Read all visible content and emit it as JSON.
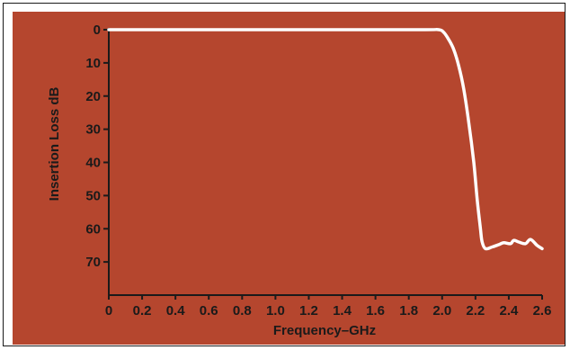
{
  "colors": {
    "frame": "#1a1a1a",
    "panel": "#b5462e",
    "axis": "#1a1a1a",
    "curve": "#ffffff"
  },
  "chart_data": {
    "type": "line",
    "title": "",
    "xlabel": "Frequency–GHz",
    "ylabel": "Insertion Loss dB",
    "xlim": [
      0,
      2.6
    ],
    "ylim": [
      0,
      80
    ],
    "y_inverted": true,
    "grid": false,
    "x_ticks": [
      0,
      0.2,
      0.4,
      0.6,
      0.8,
      1.0,
      1.2,
      1.4,
      1.6,
      1.8,
      2.0,
      2.2,
      2.4,
      2.6
    ],
    "x_tick_labels": [
      "0",
      "0.2",
      "0.4",
      "0.6",
      "0.8",
      "1.0",
      "1.2",
      "1.4",
      "1.6",
      "1.8",
      "2.0",
      "2.2",
      "2.4",
      "2.6"
    ],
    "y_ticks": [
      0,
      10,
      20,
      30,
      40,
      50,
      60,
      70
    ],
    "y_tick_labels": [
      "0",
      "10",
      "20",
      "30",
      "40",
      "50",
      "60",
      "70"
    ],
    "series": [
      {
        "x": [
          0,
          0.5,
          1.0,
          1.5,
          1.9,
          1.98,
          2.01,
          2.04,
          2.07,
          2.1,
          2.13,
          2.16,
          2.19,
          2.21,
          2.23,
          2.24,
          2.26,
          2.3,
          2.34,
          2.37,
          2.41,
          2.43,
          2.46,
          2.5,
          2.53,
          2.57,
          2.6
        ],
        "y": [
          0,
          0,
          0,
          0,
          0,
          0,
          0.8,
          3,
          6,
          11,
          18,
          28,
          40,
          51,
          60,
          64,
          66,
          65.5,
          64.8,
          64.2,
          64.5,
          63.5,
          64,
          64.5,
          63.2,
          65,
          66
        ]
      }
    ]
  }
}
